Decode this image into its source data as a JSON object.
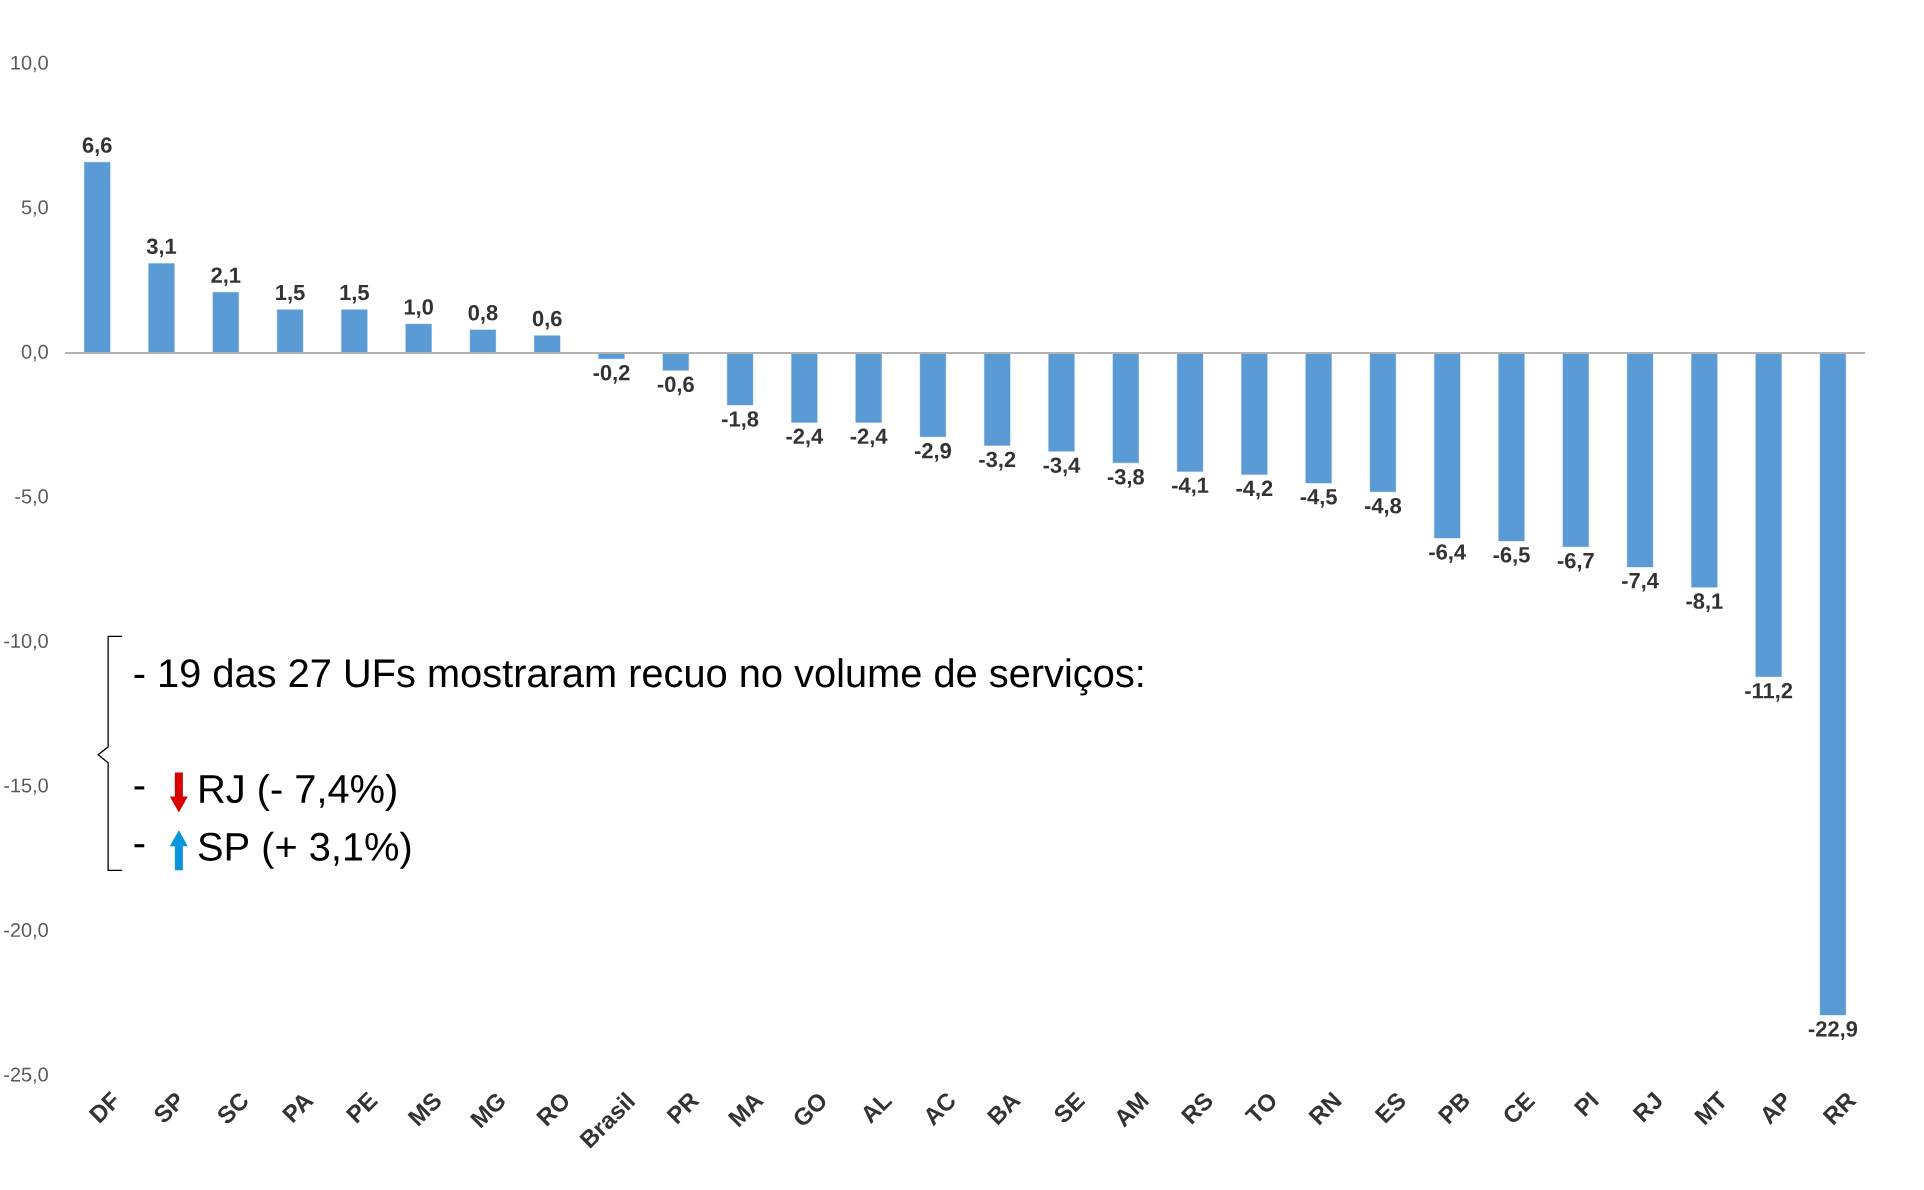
{
  "chart_data": {
    "type": "bar",
    "categories": [
      "DF",
      "SP",
      "SC",
      "PA",
      "PE",
      "MS",
      "MG",
      "RO",
      "Brasil",
      "PR",
      "MA",
      "GO",
      "AL",
      "AC",
      "BA",
      "SE",
      "AM",
      "RS",
      "TO",
      "RN",
      "ES",
      "PB",
      "CE",
      "PI",
      "RJ",
      "MT",
      "AP",
      "RR"
    ],
    "values": [
      6.6,
      3.1,
      2.1,
      1.5,
      1.5,
      1.0,
      0.8,
      0.6,
      -0.2,
      -0.6,
      -1.8,
      -2.4,
      -2.4,
      -2.9,
      -3.2,
      -3.4,
      -3.8,
      -4.1,
      -4.2,
      -4.5,
      -4.8,
      -6.4,
      -6.5,
      -6.7,
      -7.4,
      -8.1,
      -11.2,
      -22.9
    ],
    "value_labels": [
      "6,6",
      "3,1",
      "2,1",
      "1,5",
      "1,5",
      "1,0",
      "0,8",
      "0,6",
      "-0,2",
      "-0,6",
      "-1,8",
      "-2,4",
      "-2,4",
      "-2,9",
      "-3,2",
      "-3,4",
      "-3,8",
      "-4,1",
      "-4,2",
      "-4,5",
      "-4,8",
      "-6,4",
      "-6,5",
      "-6,7",
      "-7,4",
      "-8,1",
      "-11,2",
      "-22,9"
    ],
    "color": "#5b9bd5",
    "ylim": [
      -25,
      10
    ],
    "yticks": [
      {
        "value": -25,
        "label": "-25,0"
      },
      {
        "value": -20,
        "label": "-20,0"
      },
      {
        "value": -15,
        "label": "-15,0"
      },
      {
        "value": -10,
        "label": "-10,0"
      },
      {
        "value": -5,
        "label": "-5,0"
      },
      {
        "value": 0,
        "label": "0,0"
      },
      {
        "value": 5,
        "label": "5,0"
      },
      {
        "value": 10,
        "label": "10,0"
      }
    ],
    "annotations": [
      "- 19 das 27 UFs mostraram recuo no volume de serviços:",
      "-",
      "RJ (- 7,4%)",
      "-",
      "SP (+ 3,1%)"
    ]
  }
}
